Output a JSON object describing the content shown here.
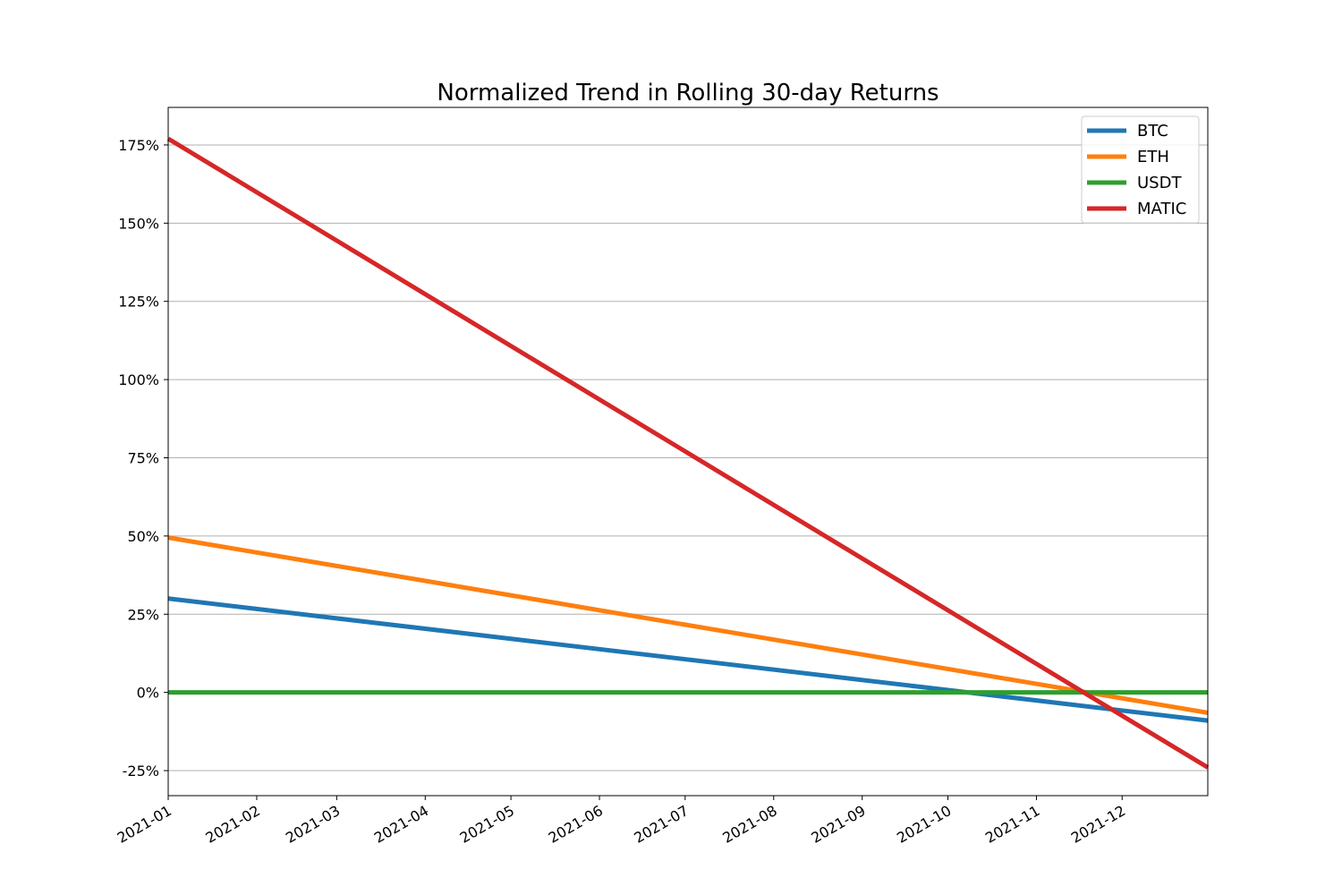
{
  "chart_data": {
    "type": "line",
    "title": "Normalized Trend in Rolling 30-day Returns",
    "xlabel": "",
    "ylabel": "",
    "xlim": [
      "2021-01-01",
      "2021-12-31"
    ],
    "ylim": [
      -33,
      187
    ],
    "x_ticks": [
      "2021-01",
      "2021-02",
      "2021-03",
      "2021-04",
      "2021-05",
      "2021-06",
      "2021-07",
      "2021-08",
      "2021-09",
      "2021-10",
      "2021-11",
      "2021-12"
    ],
    "x_tick_dates": [
      "2021-01-01",
      "2021-02-01",
      "2021-03-01",
      "2021-04-01",
      "2021-05-01",
      "2021-06-01",
      "2021-07-01",
      "2021-08-01",
      "2021-09-01",
      "2021-10-01",
      "2021-11-01",
      "2021-12-01"
    ],
    "y_ticks": [
      -25,
      0,
      25,
      50,
      75,
      100,
      125,
      150,
      175
    ],
    "y_tick_labels": [
      "-25%",
      "0%",
      "25%",
      "50%",
      "75%",
      "100%",
      "125%",
      "150%",
      "175%"
    ],
    "grid": "horizontal",
    "legend_position": "top-right",
    "series": [
      {
        "name": "BTC",
        "color": "#1f77b4",
        "x": [
          "2021-01-01",
          "2021-12-31"
        ],
        "y": [
          30,
          -9
        ]
      },
      {
        "name": "ETH",
        "color": "#ff7f0e",
        "x": [
          "2021-01-01",
          "2021-12-31"
        ],
        "y": [
          49.5,
          -6.5
        ]
      },
      {
        "name": "USDT",
        "color": "#2ca02c",
        "x": [
          "2021-01-01",
          "2021-12-31"
        ],
        "y": [
          0,
          0
        ]
      },
      {
        "name": "MATIC",
        "color": "#d62728",
        "x": [
          "2021-01-01",
          "2021-12-31"
        ],
        "y": [
          177,
          -24
        ]
      }
    ]
  }
}
